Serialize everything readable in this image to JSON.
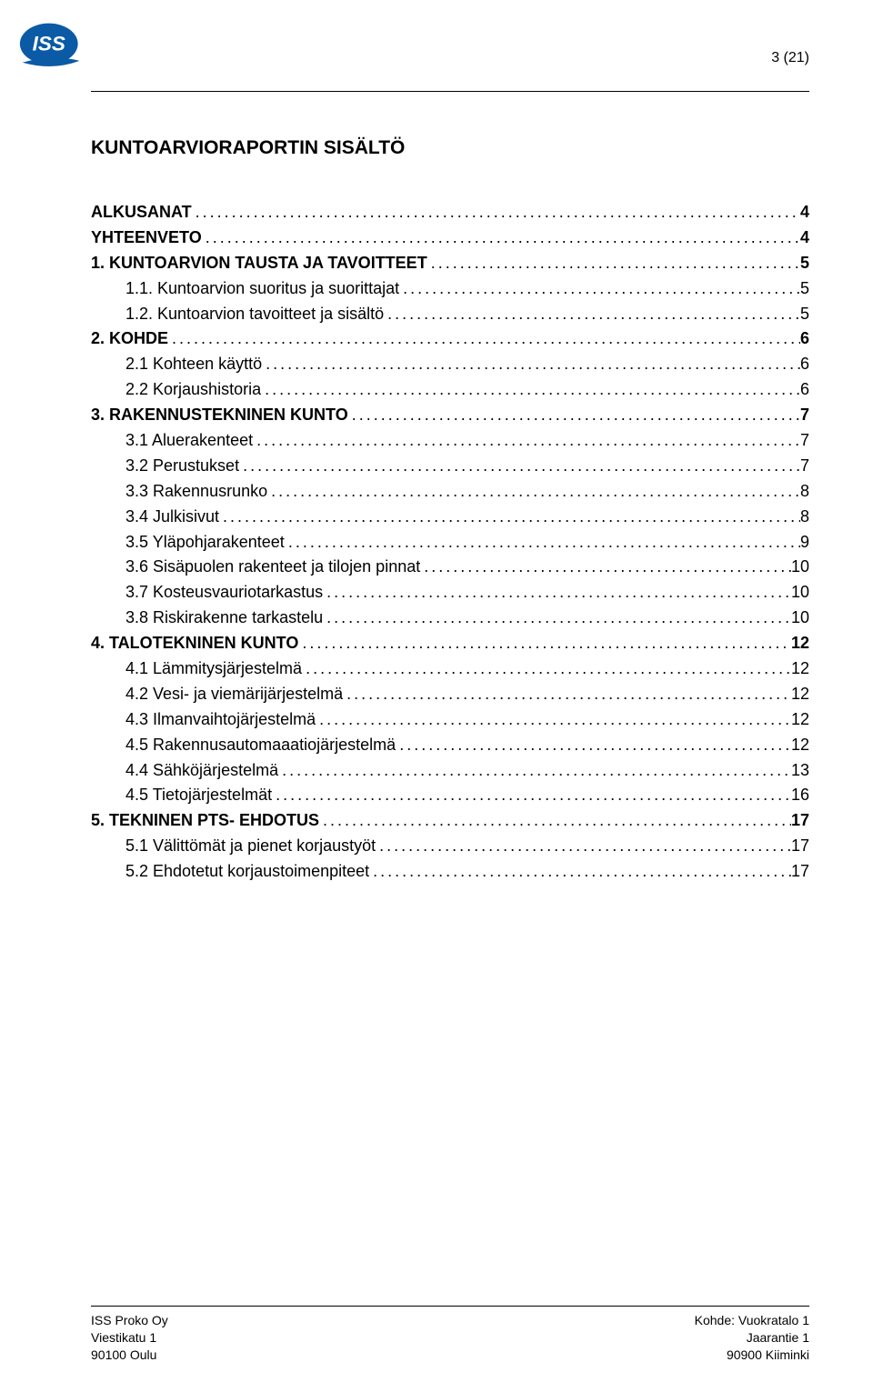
{
  "page_number": "3 (21)",
  "logo": {
    "text": "ISS",
    "bg_color": "#0a5aa6",
    "swoosh_color": "#0a5aa6",
    "text_color": "#ffffff"
  },
  "title": "KUNTOARVIORAPORTIN SISÄLTÖ",
  "toc": [
    {
      "label": "ALKUSANAT",
      "page": "4",
      "bold": true,
      "indent": false
    },
    {
      "label": "YHTEENVETO",
      "page": "4",
      "bold": true,
      "indent": false
    },
    {
      "label": "1. KUNTOARVION TAUSTA JA TAVOITTEET",
      "page": "5",
      "bold": true,
      "indent": false
    },
    {
      "label": "1.1. Kuntoarvion suoritus ja suorittajat",
      "page": "5",
      "bold": false,
      "indent": true
    },
    {
      "label": "1.2. Kuntoarvion tavoitteet ja sisältö",
      "page": "5",
      "bold": false,
      "indent": true
    },
    {
      "label": "2. KOHDE",
      "page": "6",
      "bold": true,
      "indent": false
    },
    {
      "label": "2.1 Kohteen käyttö",
      "page": "6",
      "bold": false,
      "indent": true
    },
    {
      "label": "2.2 Korjaushistoria",
      "page": "6",
      "bold": false,
      "indent": true
    },
    {
      "label": "3. RAKENNUSTEKNINEN KUNTO",
      "page": "7",
      "bold": true,
      "indent": false
    },
    {
      "label": "3.1 Aluerakenteet",
      "page": "7",
      "bold": false,
      "indent": true
    },
    {
      "label": "3.2 Perustukset",
      "page": "7",
      "bold": false,
      "indent": true
    },
    {
      "label": "3.3 Rakennusrunko",
      "page": "8",
      "bold": false,
      "indent": true
    },
    {
      "label": "3.4 Julkisivut",
      "page": "8",
      "bold": false,
      "indent": true
    },
    {
      "label": "3.5 Yläpohjarakenteet",
      "page": "9",
      "bold": false,
      "indent": true
    },
    {
      "label": "3.6 Sisäpuolen rakenteet ja tilojen pinnat",
      "page": "10",
      "bold": false,
      "indent": true
    },
    {
      "label": "3.7 Kosteusvauriotarkastus",
      "page": "10",
      "bold": false,
      "indent": true
    },
    {
      "label": "3.8 Riskirakenne tarkastelu",
      "page": "10",
      "bold": false,
      "indent": true
    },
    {
      "label": "4. TALOTEKNINEN KUNTO",
      "page": "12",
      "bold": true,
      "indent": false
    },
    {
      "label": "4.1 Lämmitysjärjestelmä",
      "page": "12",
      "bold": false,
      "indent": true
    },
    {
      "label": "4.2 Vesi- ja viemärijärjestelmä",
      "page": "12",
      "bold": false,
      "indent": true
    },
    {
      "label": "4.3 Ilmanvaihtojärjestelmä",
      "page": "12",
      "bold": false,
      "indent": true
    },
    {
      "label": "4.5 Rakennusautomaaatiojärjestelmä",
      "page": "12",
      "bold": false,
      "indent": true
    },
    {
      "label": "4.4 Sähköjärjestelmä",
      "page": "13",
      "bold": false,
      "indent": true
    },
    {
      "label": "4.5 Tietojärjestelmät",
      "page": "16",
      "bold": false,
      "indent": true
    },
    {
      "label": "5. TEKNINEN PTS- EHDOTUS",
      "page": "17",
      "bold": true,
      "indent": false
    },
    {
      "label": "5.1 Välittömät ja pienet korjaustyöt",
      "page": "17",
      "bold": false,
      "indent": true
    },
    {
      "label": "5.2 Ehdotetut korjaustoimenpiteet",
      "page": "17",
      "bold": false,
      "indent": true
    }
  ],
  "footer": {
    "left": [
      "ISS Proko Oy",
      "Viestikatu 1",
      "90100  Oulu"
    ],
    "right": [
      "Kohde: Vuokratalo 1",
      "Jaarantie 1",
      "90900 Kiiminki"
    ]
  }
}
